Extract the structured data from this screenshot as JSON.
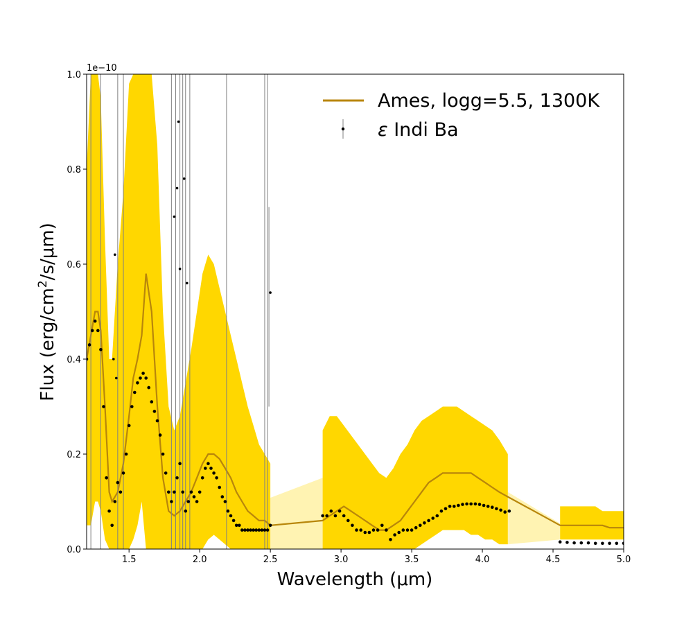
{
  "chart_data": {
    "type": "line",
    "xlabel": "Wavelength (μm)",
    "ylabel_parts": [
      "Flux (erg/cm",
      "2",
      "/s/μm)"
    ],
    "y_offset_text": "1e−10",
    "xlim": [
      1.2,
      5.0
    ],
    "ylim": [
      0.0,
      1.0
    ],
    "y_scale": "1e-10",
    "grid": false,
    "legend_position": "top-right",
    "xticks": [
      {
        "value": 1.5,
        "label": "1.5"
      },
      {
        "value": 2.0,
        "label": "2.0"
      },
      {
        "value": 2.5,
        "label": "2.5"
      },
      {
        "value": 3.0,
        "label": "3.0"
      },
      {
        "value": 3.5,
        "label": "3.5"
      },
      {
        "value": 4.0,
        "label": "4.0"
      },
      {
        "value": 4.5,
        "label": "4.5"
      },
      {
        "value": 5.0,
        "label": "5.0"
      }
    ],
    "yticks": [
      {
        "value": 0.0,
        "label": "0.0"
      },
      {
        "value": 0.2,
        "label": "0.2"
      },
      {
        "value": 0.4,
        "label": "0.4"
      },
      {
        "value": 0.6,
        "label": "0.6"
      },
      {
        "value": 0.8,
        "label": "0.8"
      },
      {
        "value": 1.0,
        "label": "1.0"
      }
    ],
    "colors": {
      "model_band": "#ffd700",
      "model_line": "#b8860b",
      "data_points": "#000000",
      "error_bars": "#808080"
    },
    "series": [
      {
        "name": "Ames, logg=5.5, 1300K",
        "kind": "model",
        "x": [
          1.2,
          1.23,
          1.26,
          1.28,
          1.3,
          1.33,
          1.36,
          1.38,
          1.42,
          1.46,
          1.5,
          1.53,
          1.56,
          1.59,
          1.62,
          1.66,
          1.7,
          1.74,
          1.78,
          1.82,
          1.86,
          1.9,
          1.94,
          1.98,
          2.02,
          2.06,
          2.1,
          2.14,
          2.18,
          2.22,
          2.26,
          2.3,
          2.34,
          2.38,
          2.42,
          2.46,
          2.5,
          2.87,
          2.92,
          2.97,
          3.02,
          3.07,
          3.12,
          3.17,
          3.22,
          3.27,
          3.32,
          3.37,
          3.42,
          3.47,
          3.52,
          3.57,
          3.62,
          3.67,
          3.72,
          3.77,
          3.82,
          3.87,
          3.92,
          3.97,
          4.02,
          4.07,
          4.12,
          4.18,
          4.55,
          4.6,
          4.65,
          4.7,
          4.75,
          4.8,
          4.85,
          4.9,
          4.95,
          5.0
        ],
        "y": [
          0.4,
          0.45,
          0.5,
          0.5,
          0.46,
          0.3,
          0.12,
          0.1,
          0.12,
          0.18,
          0.28,
          0.36,
          0.4,
          0.45,
          0.58,
          0.5,
          0.3,
          0.15,
          0.08,
          0.07,
          0.08,
          0.1,
          0.12,
          0.15,
          0.18,
          0.2,
          0.2,
          0.19,
          0.17,
          0.15,
          0.12,
          0.1,
          0.08,
          0.07,
          0.06,
          0.06,
          0.05,
          0.06,
          0.07,
          0.08,
          0.09,
          0.08,
          0.07,
          0.06,
          0.05,
          0.04,
          0.04,
          0.05,
          0.06,
          0.08,
          0.1,
          0.12,
          0.14,
          0.15,
          0.16,
          0.16,
          0.16,
          0.16,
          0.16,
          0.15,
          0.14,
          0.13,
          0.12,
          0.11,
          0.05,
          0.05,
          0.05,
          0.05,
          0.05,
          0.05,
          0.05,
          0.045,
          0.045,
          0.045
        ],
        "upper": [
          0.8,
          1.0,
          1.0,
          1.0,
          0.95,
          0.65,
          0.4,
          0.4,
          0.6,
          0.75,
          0.98,
          1.0,
          1.0,
          1.0,
          1.0,
          1.0,
          0.85,
          0.5,
          0.3,
          0.25,
          0.28,
          0.35,
          0.42,
          0.5,
          0.58,
          0.62,
          0.6,
          0.55,
          0.5,
          0.45,
          0.4,
          0.35,
          0.3,
          0.26,
          0.22,
          0.2,
          0.18,
          0.25,
          0.28,
          0.28,
          0.26,
          0.24,
          0.22,
          0.2,
          0.18,
          0.16,
          0.15,
          0.17,
          0.2,
          0.22,
          0.25,
          0.27,
          0.28,
          0.29,
          0.3,
          0.3,
          0.3,
          0.29,
          0.28,
          0.27,
          0.26,
          0.25,
          0.23,
          0.2,
          0.09,
          0.09,
          0.09,
          0.09,
          0.09,
          0.09,
          0.08,
          0.08,
          0.08,
          0.08
        ],
        "lower": [
          0.05,
          0.05,
          0.1,
          0.1,
          0.08,
          0.02,
          0.0,
          0.0,
          0.0,
          0.0,
          0.0,
          0.02,
          0.05,
          0.1,
          0.0,
          0.0,
          0.0,
          0.0,
          0.0,
          0.0,
          0.0,
          0.0,
          0.0,
          0.0,
          0.0,
          0.02,
          0.03,
          0.02,
          0.01,
          0.0,
          0.0,
          0.0,
          0.0,
          0.0,
          0.0,
          0.0,
          0.0,
          0.0,
          0.0,
          0.0,
          0.0,
          0.0,
          0.0,
          0.0,
          0.0,
          0.0,
          0.0,
          0.0,
          0.0,
          0.0,
          0.0,
          0.01,
          0.02,
          0.03,
          0.04,
          0.04,
          0.04,
          0.04,
          0.03,
          0.03,
          0.02,
          0.02,
          0.01,
          0.01,
          0.02,
          0.02,
          0.02,
          0.02,
          0.02,
          0.02,
          0.02,
          0.02,
          0.02,
          0.02
        ]
      },
      {
        "name": "ε Indi Ba",
        "name_parts": [
          "ε",
          " Indi Ba"
        ],
        "kind": "data",
        "x": [
          1.2,
          1.22,
          1.24,
          1.26,
          1.28,
          1.3,
          1.32,
          1.34,
          1.36,
          1.38,
          1.4,
          1.42,
          1.44,
          1.46,
          1.48,
          1.5,
          1.52,
          1.54,
          1.56,
          1.58,
          1.6,
          1.62,
          1.64,
          1.66,
          1.68,
          1.7,
          1.72,
          1.74,
          1.76,
          1.78,
          1.8,
          1.82,
          1.84,
          1.86,
          1.88,
          1.9,
          1.92,
          1.94,
          1.96,
          1.98,
          2.0,
          2.02,
          2.04,
          2.06,
          2.08,
          2.1,
          2.12,
          2.14,
          2.16,
          2.18,
          2.2,
          2.22,
          2.24,
          2.26,
          2.28,
          2.3,
          2.32,
          2.34,
          2.36,
          2.38,
          2.4,
          2.42,
          2.44,
          2.46,
          2.48,
          2.5,
          2.87,
          2.9,
          2.93,
          2.96,
          2.99,
          3.02,
          3.05,
          3.08,
          3.11,
          3.14,
          3.17,
          3.2,
          3.23,
          3.26,
          3.29,
          3.32,
          3.35,
          3.38,
          3.41,
          3.44,
          3.47,
          3.5,
          3.53,
          3.56,
          3.59,
          3.62,
          3.65,
          3.68,
          3.71,
          3.74,
          3.77,
          3.8,
          3.83,
          3.86,
          3.89,
          3.92,
          3.95,
          3.98,
          4.01,
          4.04,
          4.07,
          4.1,
          4.13,
          4.16,
          4.19,
          4.55,
          4.6,
          4.65,
          4.7,
          4.75,
          4.8,
          4.85,
          4.9,
          4.95,
          5.0
        ],
        "y": [
          0.4,
          0.43,
          0.46,
          0.48,
          0.46,
          0.42,
          0.3,
          0.15,
          0.08,
          0.05,
          0.1,
          0.14,
          0.12,
          0.16,
          0.2,
          0.26,
          0.3,
          0.33,
          0.35,
          0.36,
          0.37,
          0.36,
          0.34,
          0.31,
          0.29,
          0.27,
          0.24,
          0.2,
          0.16,
          0.12,
          0.1,
          0.12,
          0.15,
          0.18,
          0.12,
          0.08,
          0.1,
          0.12,
          0.11,
          0.1,
          0.12,
          0.15,
          0.17,
          0.18,
          0.17,
          0.16,
          0.15,
          0.13,
          0.11,
          0.1,
          0.08,
          0.07,
          0.06,
          0.05,
          0.05,
          0.04,
          0.04,
          0.04,
          0.04,
          0.04,
          0.04,
          0.04,
          0.04,
          0.04,
          0.04,
          0.05,
          0.07,
          0.07,
          0.08,
          0.07,
          0.08,
          0.07,
          0.06,
          0.05,
          0.04,
          0.04,
          0.035,
          0.035,
          0.04,
          0.04,
          0.05,
          0.04,
          0.02,
          0.03,
          0.035,
          0.04,
          0.04,
          0.04,
          0.045,
          0.05,
          0.055,
          0.06,
          0.065,
          0.07,
          0.08,
          0.085,
          0.09,
          0.09,
          0.092,
          0.094,
          0.095,
          0.095,
          0.095,
          0.094,
          0.092,
          0.09,
          0.088,
          0.085,
          0.082,
          0.078,
          0.08,
          0.015,
          0.014,
          0.013,
          0.013,
          0.013,
          0.012,
          0.012,
          0.012,
          0.012,
          0.012
        ]
      }
    ],
    "outliers": [
      {
        "x": 1.4,
        "y": 0.62
      },
      {
        "x": 1.85,
        "y": 0.9
      },
      {
        "x": 1.82,
        "y": 0.7
      },
      {
        "x": 1.84,
        "y": 0.76
      },
      {
        "x": 1.89,
        "y": 0.78
      },
      {
        "x": 1.91,
        "y": 0.56
      },
      {
        "x": 1.86,
        "y": 0.59
      },
      {
        "x": 2.5,
        "y": 0.54
      },
      {
        "x": 1.39,
        "y": 0.4
      },
      {
        "x": 1.41,
        "y": 0.36
      }
    ],
    "error_bars": [
      {
        "x": 1.23,
        "low": 0.0,
        "high": 1.0
      },
      {
        "x": 1.3,
        "low": 0.0,
        "high": 1.0
      },
      {
        "x": 1.42,
        "low": 0.0,
        "high": 1.0
      },
      {
        "x": 1.46,
        "low": 0.0,
        "high": 1.0
      },
      {
        "x": 1.8,
        "low": 0.0,
        "high": 1.0
      },
      {
        "x": 1.83,
        "low": 0.0,
        "high": 1.0
      },
      {
        "x": 1.86,
        "low": 0.0,
        "high": 1.0
      },
      {
        "x": 1.88,
        "low": 0.0,
        "high": 1.0
      },
      {
        "x": 1.9,
        "low": 0.0,
        "high": 1.0
      },
      {
        "x": 1.93,
        "low": 0.0,
        "high": 1.0
      },
      {
        "x": 2.19,
        "low": 0.0,
        "high": 1.0
      },
      {
        "x": 2.46,
        "low": 0.0,
        "high": 1.0
      },
      {
        "x": 2.48,
        "low": 0.0,
        "high": 1.0
      },
      {
        "x": 2.49,
        "low": 0.3,
        "high": 0.72
      }
    ]
  }
}
